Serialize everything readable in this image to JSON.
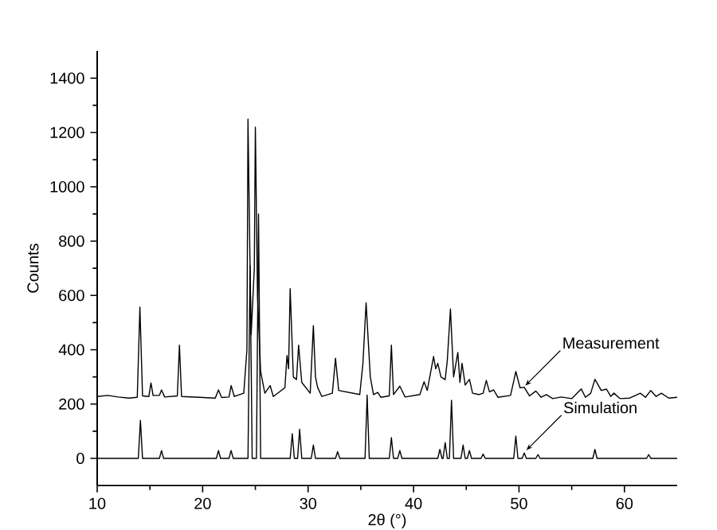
{
  "chart_data": {
    "type": "line",
    "xlabel": "2θ (°)",
    "ylabel": "Counts",
    "xlim": [
      10,
      65
    ],
    "ylim": [
      -100,
      1500
    ],
    "xticks": [
      10,
      20,
      30,
      40,
      50,
      60
    ],
    "yticks": [
      0,
      200,
      400,
      600,
      800,
      1000,
      1200,
      1400
    ],
    "grid": false,
    "marker": "none",
    "line_style": "solid",
    "series": [
      {
        "color": "#000000",
        "x": [
          10,
          11,
          12,
          13,
          13.8,
          14.05,
          14.3,
          14.9,
          15.1,
          15.3,
          15.9,
          16.1,
          16.4,
          17.6,
          17.8,
          18.0,
          21.2,
          21.5,
          21.8,
          22.5,
          22.7,
          23.0,
          23.9,
          24.2,
          24.3,
          24.5,
          24.6,
          24.9,
          25.0,
          25.2,
          25.5,
          25.9,
          26.4,
          26.7,
          27.8,
          28.0,
          28.15,
          28.3,
          28.6,
          28.9,
          29.1,
          29.4,
          30.2,
          30.5,
          30.7,
          30.9,
          31.3,
          32.3,
          32.6,
          32.9,
          34.9,
          35.2,
          35.5,
          35.9,
          36.2,
          36.6,
          36.9,
          37.7,
          37.9,
          38.1,
          38.7,
          39.2,
          40.6,
          41.0,
          41.3,
          41.9,
          42.1,
          42.3,
          42.6,
          43.0,
          43.2,
          43.5,
          43.8,
          44.2,
          44.4,
          44.6,
          44.9,
          45.3,
          45.6,
          46.2,
          46.6,
          46.9,
          47.2,
          47.6,
          48.0,
          49.2,
          49.7,
          50.1,
          50.5,
          51.0,
          51.6,
          52.1,
          52.6,
          53.2,
          54.0,
          55.0,
          55.9,
          56.3,
          56.8,
          57.2,
          57.8,
          58.3,
          58.7,
          59.0,
          59.6,
          60.5,
          61.5,
          62.0,
          62.5,
          63.0,
          63.5,
          64.2,
          65
        ],
        "values": [
          228,
          232,
          226,
          222,
          225,
          557,
          230,
          228,
          278,
          232,
          232,
          252,
          226,
          230,
          417,
          228,
          222,
          252,
          224,
          226,
          268,
          228,
          240,
          400,
          1249,
          700,
          456,
          700,
          1220,
          600,
          320,
          240,
          268,
          228,
          260,
          379,
          330,
          625,
          300,
          290,
          417,
          280,
          240,
          489,
          300,
          262,
          228,
          240,
          369,
          250,
          235,
          350,
          573,
          300,
          235,
          243,
          225,
          230,
          417,
          235,
          266,
          226,
          235,
          282,
          250,
          375,
          330,
          350,
          300,
          290,
          360,
          550,
          300,
          390,
          280,
          350,
          270,
          291,
          240,
          235,
          240,
          287,
          245,
          252,
          225,
          232,
          320,
          260,
          262,
          230,
          248,
          225,
          235,
          220,
          226,
          220,
          256,
          225,
          240,
          291,
          250,
          255,
          228,
          240,
          220,
          222,
          240,
          225,
          250,
          228,
          240,
          222,
          225
        ]
      },
      {
        "color": "#000000",
        "x": [
          10,
          13.9,
          14.1,
          14.3,
          15.9,
          16.1,
          16.3,
          21.3,
          21.5,
          21.7,
          22.5,
          22.7,
          22.9,
          24.3,
          24.5,
          24.7,
          25.1,
          25.3,
          25.5,
          28.3,
          28.5,
          28.7,
          29.0,
          29.2,
          29.4,
          30.3,
          30.5,
          30.7,
          32.6,
          32.8,
          33.0,
          35.4,
          35.6,
          35.8,
          37.7,
          37.9,
          38.1,
          38.5,
          38.7,
          38.9,
          42.3,
          42.5,
          42.7,
          42.8,
          43.0,
          43.2,
          43.4,
          43.6,
          43.8,
          44.5,
          44.7,
          44.9,
          45.1,
          45.3,
          45.5,
          46.4,
          46.6,
          46.8,
          49.5,
          49.7,
          49.9,
          50.3,
          50.5,
          50.7,
          51.6,
          51.8,
          52.0,
          57.0,
          57.2,
          57.4,
          62.1,
          62.3,
          62.5,
          65
        ],
        "values": [
          0,
          0,
          140,
          0,
          0,
          29,
          0,
          0,
          29,
          0,
          0,
          29,
          0,
          0,
          709,
          0,
          0,
          900,
          0,
          0,
          91,
          0,
          0,
          107,
          0,
          0,
          49,
          0,
          0,
          25,
          0,
          0,
          233,
          0,
          0,
          76,
          0,
          0,
          29,
          0,
          0,
          33,
          0,
          0,
          58,
          0,
          0,
          214,
          0,
          0,
          49,
          0,
          0,
          29,
          0,
          0,
          16,
          0,
          0,
          82,
          0,
          0,
          20,
          0,
          0,
          14,
          0,
          0,
          33,
          0,
          0,
          14,
          0,
          0
        ]
      }
    ],
    "annotations": [
      {
        "text": "Measurement",
        "x": 50.6,
        "y": 268
      },
      {
        "text": "Simulation",
        "x": 50.7,
        "y": 30
      }
    ]
  }
}
